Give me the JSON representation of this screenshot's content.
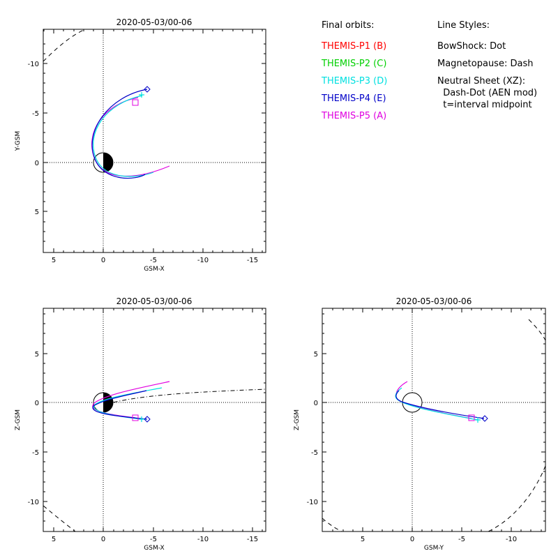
{
  "panels": {
    "xy": {
      "title": "2020-05-03/00-06",
      "xlabel": "GSM-X",
      "ylabel": "Y-GSM",
      "xticks": [
        "5",
        "0",
        "-5",
        "-10",
        "-15"
      ],
      "yticks": [
        "-10",
        "-5",
        "0",
        "5"
      ]
    },
    "xz": {
      "title": "2020-05-03/00-06",
      "xlabel": "GSM-X",
      "ylabel": "Z-GSM",
      "xticks": [
        "5",
        "0",
        "-5",
        "-10",
        "-15"
      ],
      "yticks": [
        "5",
        "0",
        "-5",
        "-10"
      ]
    },
    "yz": {
      "title": "2020-05-03/00-06",
      "xlabel": "GSM-Y",
      "ylabel": "Z-GSM",
      "xticks": [
        "5",
        "0",
        "-5",
        "-10"
      ],
      "yticks": [
        "5",
        "0",
        "-5",
        "-10"
      ]
    }
  },
  "legend": {
    "orbits_title": "Final orbits:",
    "orbits": [
      {
        "label": "THEMIS-P1 (B)",
        "color": "#ff0000"
      },
      {
        "label": "THEMIS-P2 (C)",
        "color": "#00d000"
      },
      {
        "label": "THEMIS-P3 (D)",
        "color": "#00e0e0"
      },
      {
        "label": "THEMIS-P4 (E)",
        "color": "#0000c8"
      },
      {
        "label": "THEMIS-P5 (A)",
        "color": "#e000e0"
      }
    ],
    "styles_title": "Line Styles:",
    "styles": [
      "BowShock: Dot",
      "Magnetopause: Dash",
      "Neutral Sheet (XZ):",
      "  Dash-Dot (AEN mod)",
      "  t=interval midpoint"
    ]
  },
  "colors": {
    "p3": "#00e0e0",
    "p4": "#0000c8",
    "p5": "#e000e0"
  }
}
